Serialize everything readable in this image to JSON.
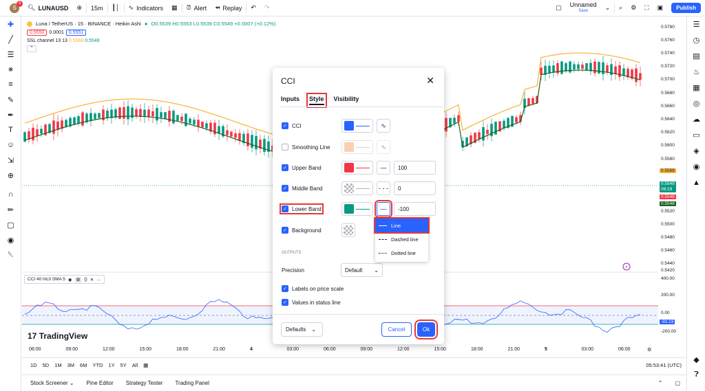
{
  "topbar": {
    "avatar_letter": "S",
    "avatar_badge": "5",
    "symbol": "LUNAUSD",
    "interval": "15m",
    "indicators_label": "Indicators",
    "alert_label": "Alert",
    "replay_label": "Replay",
    "layout_name": "Unnamed",
    "layout_status": "Save",
    "publish_label": "Publish"
  },
  "legend": {
    "title": "Luna / TetherUS · 15 · BINANCE · Heikin Ashi",
    "ohlc": "O0.5539 H0.5553 L0.5539 C0.5549 +0.0007 (+0.12%)",
    "bid": "0.5550",
    "spread": "0.0001",
    "ask": "0.5551",
    "ssl": "SSL channel 13 13",
    "ssl_v1": "0.5568",
    "ssl_v2": "0.5548"
  },
  "price_axis": {
    "labels": [
      "0.5780",
      "0.5760",
      "0.5740",
      "0.5720",
      "0.5700",
      "0.5680",
      "0.5660",
      "0.5640",
      "0.5620",
      "0.5600",
      "0.5580",
      "0.5560",
      "0.5520",
      "0.5500",
      "0.5480",
      "0.5460",
      "0.5440",
      "0.5420"
    ],
    "tag_yellow": "0.5568",
    "tag_green": "0.5549",
    "tag_green_time": "06:19",
    "tag_red": "0.5548",
    "tag_dark": "0.5548"
  },
  "cci_axis": {
    "labels": [
      "400.00",
      "200.00",
      "0.00",
      "-200.00"
    ],
    "tag": "-92.23"
  },
  "cci_legend": {
    "label": "CCI 40 hlc3 SMA 5"
  },
  "brand": "TradingView",
  "time_axis": [
    "06:00",
    "09:00",
    "12:00",
    "15:00",
    "18:00",
    "21:00",
    "4",
    "03:00",
    "06:00",
    "09:00",
    "12:00",
    "15:00",
    "18:00",
    "21:00",
    "5",
    "03:00",
    "06:00"
  ],
  "bottom_toolbar": {
    "ranges": [
      "1D",
      "5D",
      "1M",
      "3M",
      "6M",
      "YTD",
      "1Y",
      "5Y",
      "All"
    ],
    "clock": "05:53:41 (UTC)"
  },
  "bottom_tabs": [
    "Stock Screener",
    "Pine Editor",
    "Strategy Tester",
    "Trading Panel"
  ],
  "dialog": {
    "title": "CCI",
    "tabs": [
      "Inputs",
      "Style",
      "Visibility"
    ],
    "rows": {
      "cci": {
        "label": "CCI",
        "color": "#2962ff"
      },
      "smoothing": {
        "label": "Smoothing Line",
        "color": "#f7b27d"
      },
      "upper": {
        "label": "Upper Band",
        "color": "#f23645",
        "value": "100"
      },
      "middle": {
        "label": "Middle Band",
        "value": "0"
      },
      "lower": {
        "label": "Lower Band",
        "color": "#089981",
        "value": "-100"
      },
      "background": {
        "label": "Background"
      }
    },
    "outputs_label": "OUTPUTS",
    "precision_label": "Precision",
    "precision_value": "Default",
    "labels_on_price_scale": "Labels on price scale",
    "values_in_status_line": "Values in status line",
    "defaults_label": "Defaults",
    "cancel_label": "Cancel",
    "ok_label": "Ok",
    "line_style_options": [
      "Line",
      "Dashed line",
      "Dotted line"
    ]
  }
}
